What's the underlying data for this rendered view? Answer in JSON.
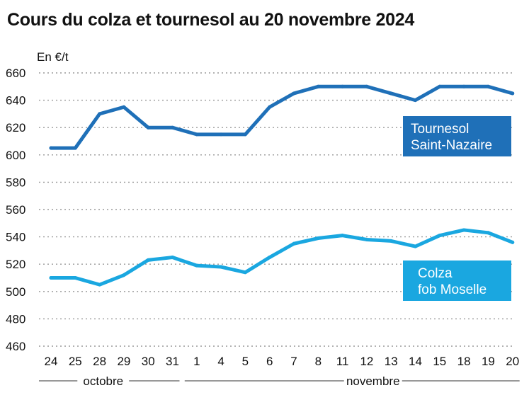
{
  "chart_data": {
    "type": "line",
    "title": "Cours du colza et tournesol au 20 novembre 2024",
    "unit_label": "En €/t",
    "ylim": [
      460,
      660
    ],
    "y_ticks": [
      "460",
      "480",
      "500",
      "520",
      "540",
      "560",
      "580",
      "600",
      "620",
      "640",
      "660"
    ],
    "categories": [
      "24",
      "25",
      "28",
      "29",
      "30",
      "31",
      "1",
      "4",
      "5",
      "6",
      "7",
      "8",
      "11",
      "12",
      "13",
      "14",
      "15",
      "18",
      "19",
      "20"
    ],
    "months": [
      {
        "label": "octobre",
        "from": 0,
        "to": 5
      },
      {
        "label": "novembre",
        "from": 6,
        "to": 19
      }
    ],
    "grid": true,
    "series": [
      {
        "name": "Tournesol Saint-Nazaire",
        "label_lines": [
          "Tournesol",
          "Saint-Nazaire"
        ],
        "color": "#1f70b8",
        "values": [
          605,
          605,
          630,
          635,
          620,
          620,
          615,
          615,
          615,
          635,
          645,
          650,
          650,
          650,
          645,
          640,
          650,
          650,
          650,
          645
        ]
      },
      {
        "name": "Colza fob Moselle",
        "label_lines": [
          "Colza",
          "fob Moselle"
        ],
        "color": "#1aa7e0",
        "values": [
          510,
          510,
          505,
          512,
          523,
          525,
          519,
          518,
          514,
          525,
          535,
          539,
          541,
          538,
          537,
          533,
          541,
          545,
          543,
          536
        ]
      }
    ]
  }
}
